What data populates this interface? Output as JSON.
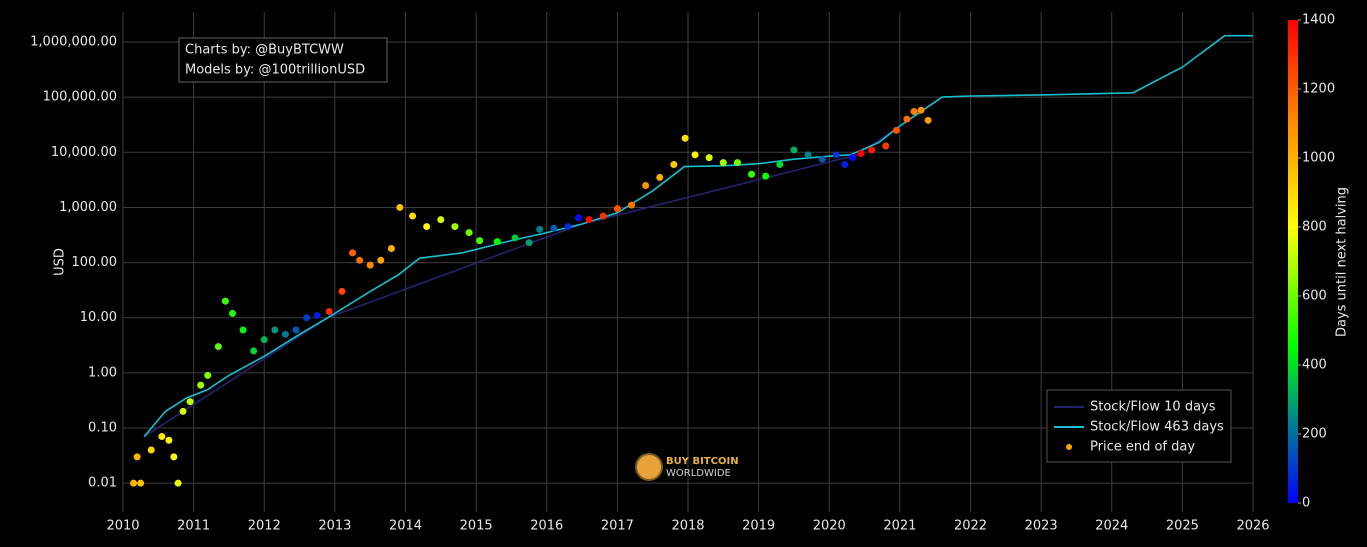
{
  "chart_data": {
    "type": "scatter",
    "y_label": "USD",
    "log_y": true,
    "grid": true,
    "xlim": [
      2010,
      2026
    ],
    "xticks": [
      2010,
      2011,
      2012,
      2013,
      2014,
      2015,
      2016,
      2017,
      2018,
      2019,
      2020,
      2021,
      2022,
      2023,
      2024,
      2025,
      2026
    ],
    "ylim": [
      0.003,
      3500000
    ],
    "yticks": [
      0.01,
      {
        "value": 0.1,
        "label": "0.10"
      },
      {
        "value": 1,
        "label": "1.00"
      },
      {
        "value": 10,
        "label": "10.00"
      },
      {
        "value": 100,
        "label": "100.00"
      },
      {
        "value": 1000,
        "label": "1,000.00"
      },
      {
        "value": 10000,
        "label": "10,000.00"
      },
      {
        "value": 100000,
        "label": "100,000.00"
      },
      {
        "value": 1000000,
        "label": "1,000,000.00"
      }
    ],
    "colorbar_title": "Days until next halving",
    "clim": [
      0,
      1400
    ],
    "cticks": [
      0,
      200,
      400,
      600,
      800,
      1000,
      1200,
      1400
    ],
    "colorscale": [
      [
        0,
        "#0000ff"
      ],
      [
        250,
        "#008a8a"
      ],
      [
        450,
        "#00ff00"
      ],
      [
        800,
        "#ffff00"
      ],
      [
        1100,
        "#ff8c00"
      ],
      [
        1400,
        "#ff0000"
      ]
    ],
    "legend_position": "lower right",
    "annotation": [
      "Charts by: @BuyBTCWW",
      "Models by: @100trillionUSD"
    ],
    "watermark": [
      "BUY BITCOIN",
      "WORLDWIDE"
    ],
    "series": [
      {
        "name": "Stock/Flow 10 days",
        "kind": "line",
        "color": "#24246e",
        "x": [
          2010.3,
          2012.9,
          2016.5,
          2020.4,
          2021.6
        ],
        "values": [
          0.07,
          10,
          500,
          9000,
          100000
        ]
      },
      {
        "name": "Stock/Flow 463 days",
        "kind": "line",
        "color": "#17becf",
        "x": [
          2010.3,
          2010.6,
          2010.9,
          2011.2,
          2011.5,
          2012.0,
          2012.5,
          2012.9,
          2013.5,
          2013.9,
          2014.2,
          2014.8,
          2015.5,
          2016.0,
          2016.5,
          2017.0,
          2017.5,
          2017.95,
          2018.5,
          2019.0,
          2019.5,
          2020.0,
          2020.3,
          2020.7,
          2021.0,
          2021.6,
          2022.0,
          2023.0,
          2024.3,
          2025.0,
          2025.6,
          2026.0
        ],
        "values": [
          0.07,
          0.2,
          0.35,
          0.5,
          0.9,
          2,
          5,
          10,
          30,
          60,
          120,
          150,
          250,
          350,
          500,
          800,
          2000,
          5500,
          5700,
          6200,
          7500,
          8500,
          9000,
          15000,
          30000,
          100000,
          105000,
          110000,
          120000,
          350000,
          1300000,
          1300000
        ]
      },
      {
        "name": "Price end of day",
        "kind": "points",
        "color": "#ffa500",
        "x": [
          2010.15,
          2010.2,
          2010.25,
          2010.4,
          2010.55,
          2010.65,
          2010.72,
          2010.78,
          2010.85,
          2010.95,
          2011.1,
          2011.2,
          2011.35,
          2011.45,
          2011.55,
          2011.7,
          2011.85,
          2012.0,
          2012.15,
          2012.3,
          2012.45,
          2012.6,
          2012.75,
          2012.92,
          2013.1,
          2013.25,
          2013.35,
          2013.5,
          2013.65,
          2013.8,
          2013.92,
          2014.1,
          2014.3,
          2014.5,
          2014.7,
          2014.9,
          2015.05,
          2015.3,
          2015.55,
          2015.75,
          2015.9,
          2016.1,
          2016.3,
          2016.45,
          2016.6,
          2016.8,
          2017.0,
          2017.2,
          2017.4,
          2017.6,
          2017.8,
          2017.96,
          2018.1,
          2018.3,
          2018.5,
          2018.7,
          2018.9,
          2019.1,
          2019.3,
          2019.5,
          2019.7,
          2019.9,
          2020.1,
          2020.22,
          2020.33,
          2020.45,
          2020.6,
          2020.8,
          2020.95,
          2021.1,
          2021.2,
          2021.3,
          2021.4
        ],
        "values": [
          0.01,
          0.03,
          0.01,
          0.04,
          0.07,
          0.06,
          0.03,
          0.01,
          0.2,
          0.3,
          0.6,
          0.9,
          3,
          20,
          12,
          6,
          2.5,
          4,
          6,
          5,
          6,
          10,
          11,
          13,
          30,
          150,
          110,
          90,
          110,
          180,
          1000,
          700,
          450,
          600,
          450,
          350,
          250,
          240,
          280,
          230,
          400,
          420,
          450,
          650,
          600,
          700,
          950,
          1100,
          2500,
          3500,
          6000,
          18000,
          9000,
          8000,
          6500,
          6500,
          4000,
          3700,
          6000,
          11000,
          9000,
          7500,
          9000,
          6000,
          8000,
          9500,
          11000,
          13000,
          25000,
          40000,
          55000,
          58000,
          38000
        ],
        "days": [
          1004,
          985,
          967,
          913,
          858,
          822,
          796,
          767,
          748,
          712,
          657,
          620,
          566,
          529,
          493,
          438,
          383,
          329,
          274,
          219,
          164,
          110,
          55,
          1318,
          1252,
          1197,
          1161,
          1106,
          1051,
          996,
          953,
          887,
          818,
          745,
          672,
          599,
          544,
          453,
          361,
          288,
          230,
          157,
          84,
          29,
          1372,
          1300,
          1226,
          1153,
          1080,
          1007,
          934,
          876,
          825,
          752,
          679,
          606,
          533,
          460,
          387,
          314,
          241,
          168,
          95,
          51,
          11,
          1400,
          1350,
          1278,
          1223,
          1168,
          1132,
          1095,
          1059
        ]
      }
    ]
  }
}
